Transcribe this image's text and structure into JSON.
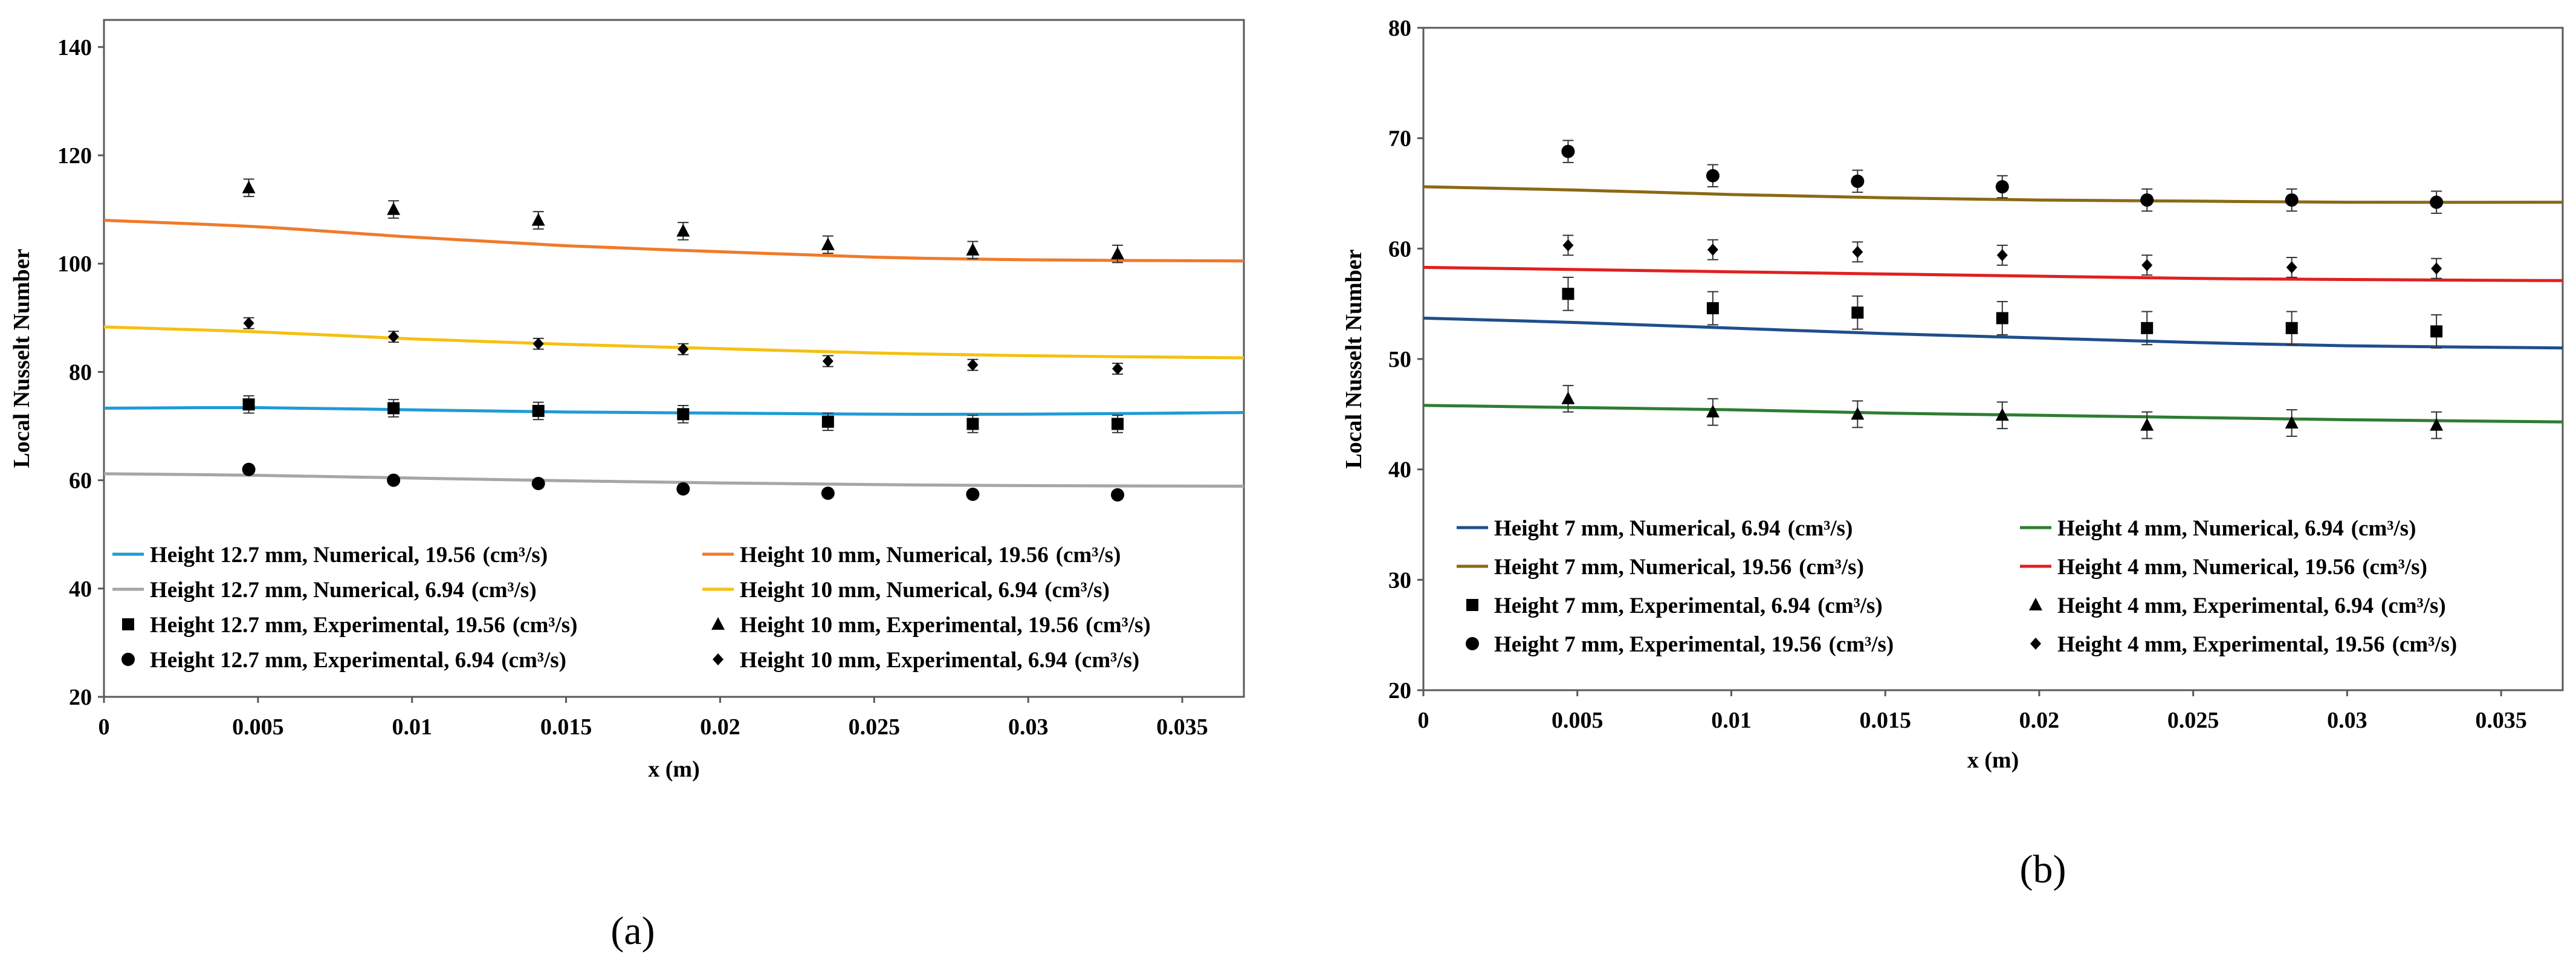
{
  "colors": {
    "blue": "#1f9bd6",
    "orange": "#f07a2a",
    "gray": "#a6a6a6",
    "yellow": "#f5c010",
    "navy": "#1f4e8c",
    "brown": "#8b6914",
    "red": "#e02020",
    "green": "#2e7d32",
    "marker": "#000000"
  },
  "chart_data": [
    {
      "type": "line",
      "panel_label": "(a)",
      "title": "",
      "xlabel": "x (m)",
      "ylabel": "Local Nusselt Number",
      "xlim": [
        0,
        0.037
      ],
      "ylim": [
        20,
        145
      ],
      "xticks": [
        0,
        0.005,
        0.01,
        0.015,
        0.02,
        0.025,
        0.03,
        0.035
      ],
      "xtick_labels": [
        "0",
        "0.005",
        "0.01",
        "0.015",
        "0.02",
        "0.025",
        "0.03",
        "0.035"
      ],
      "yticks": [
        20,
        40,
        60,
        80,
        100,
        120,
        140
      ],
      "ytick_labels": [
        "20",
        "40",
        "60",
        "80",
        "100",
        "120",
        "140"
      ],
      "legend_position": "bottom",
      "series": [
        {
          "name": "Height 12.7 mm, Numerical, 19.56",
          "unit": "(cm³/s)",
          "kind": "line",
          "color": "blue",
          "x": [
            0,
            0.005,
            0.01,
            0.015,
            0.02,
            0.025,
            0.03,
            0.037
          ],
          "y": [
            73.3,
            73.4,
            73.0,
            72.6,
            72.4,
            72.2,
            72.2,
            72.5
          ]
        },
        {
          "name": "Height 10 mm, Numerical, 19.56",
          "unit": "(cm³/s)",
          "kind": "line",
          "color": "orange",
          "x": [
            0,
            0.005,
            0.01,
            0.015,
            0.02,
            0.025,
            0.03,
            0.037
          ],
          "y": [
            108.0,
            106.8,
            104.9,
            103.3,
            102.2,
            101.2,
            100.7,
            100.5
          ]
        },
        {
          "name": "Height 12.7 mm, Numerical, 6.94",
          "unit": "(cm³/s)",
          "kind": "line",
          "color": "gray",
          "x": [
            0,
            0.005,
            0.01,
            0.015,
            0.02,
            0.025,
            0.03,
            0.037
          ],
          "y": [
            61.2,
            60.9,
            60.4,
            59.9,
            59.5,
            59.2,
            59.0,
            58.9
          ]
        },
        {
          "name": "Height 10 mm, Numerical, 6.94",
          "unit": "(cm³/s)",
          "kind": "line",
          "color": "yellow",
          "x": [
            0,
            0.005,
            0.01,
            0.015,
            0.02,
            0.025,
            0.03,
            0.037
          ],
          "y": [
            88.3,
            87.4,
            86.1,
            85.1,
            84.3,
            83.5,
            83.0,
            82.6
          ]
        },
        {
          "name": "Height 12.7 mm, Experimental, 19.56",
          "unit": "(cm³/s)",
          "kind": "marker",
          "marker": "square",
          "x": [
            0.0047,
            0.0094,
            0.0141,
            0.0188,
            0.0235,
            0.0282,
            0.0329
          ],
          "y": [
            74.0,
            73.3,
            72.8,
            72.2,
            70.8,
            70.4,
            70.4
          ],
          "err": 1.6
        },
        {
          "name": "Height 10 mm, Experimental, 19.56",
          "unit": "(cm³/s)",
          "kind": "marker",
          "marker": "triangle",
          "x": [
            0.0047,
            0.0094,
            0.0141,
            0.0188,
            0.0235,
            0.0282,
            0.0329
          ],
          "y": [
            114.0,
            110.0,
            108.0,
            106.0,
            103.5,
            102.5,
            101.8
          ],
          "err": 1.6
        },
        {
          "name": "Height 12.7 mm, Experimental, 6.94",
          "unit": "(cm³/s)",
          "kind": "marker",
          "marker": "circle",
          "x": [
            0.0047,
            0.0094,
            0.0141,
            0.0188,
            0.0235,
            0.0282,
            0.0329
          ],
          "y": [
            62.0,
            60.0,
            59.4,
            58.4,
            57.6,
            57.4,
            57.3
          ],
          "err": 0.6
        },
        {
          "name": "Height 10 mm, Experimental, 6.94",
          "unit": "(cm³/s)",
          "kind": "marker",
          "marker": "diamond",
          "x": [
            0.0047,
            0.0094,
            0.0141,
            0.0188,
            0.0235,
            0.0282,
            0.0329
          ],
          "y": [
            89.0,
            86.5,
            85.2,
            84.2,
            82.0,
            81.3,
            80.6
          ],
          "err": 1.0
        }
      ]
    },
    {
      "type": "line",
      "panel_label": "(b)",
      "title": "",
      "xlabel": "x (m)",
      "ylabel": "Local Nusselt Number",
      "xlim": [
        0,
        0.037
      ],
      "ylim": [
        20,
        80
      ],
      "xticks": [
        0,
        0.005,
        0.01,
        0.015,
        0.02,
        0.025,
        0.03,
        0.035
      ],
      "xtick_labels": [
        "0",
        "0.005",
        "0.01",
        "0.015",
        "0.02",
        "0.025",
        "0.03",
        "0.035"
      ],
      "yticks": [
        20,
        30,
        40,
        50,
        60,
        70,
        80
      ],
      "ytick_labels": [
        "20",
        "30",
        "40",
        "50",
        "60",
        "70",
        "80"
      ],
      "legend_position": "bottom",
      "series": [
        {
          "name": "Height 7 mm, Numerical, 6.94",
          "unit": "(cm³/s)",
          "kind": "line",
          "color": "navy",
          "x": [
            0,
            0.005,
            0.01,
            0.015,
            0.02,
            0.025,
            0.03,
            0.037
          ],
          "y": [
            53.7,
            53.3,
            52.8,
            52.3,
            51.9,
            51.5,
            51.2,
            51.0
          ]
        },
        {
          "name": "Height 4 mm, Numerical, 6.94",
          "unit": "(cm³/s)",
          "kind": "line",
          "color": "green",
          "x": [
            0,
            0.005,
            0.01,
            0.015,
            0.02,
            0.025,
            0.03,
            0.037
          ],
          "y": [
            45.8,
            45.6,
            45.4,
            45.1,
            44.9,
            44.7,
            44.5,
            44.3
          ]
        },
        {
          "name": "Height 7 mm, Numerical, 19.56",
          "unit": "(cm³/s)",
          "kind": "line",
          "color": "brown",
          "x": [
            0,
            0.005,
            0.01,
            0.015,
            0.02,
            0.025,
            0.03,
            0.037
          ],
          "y": [
            65.6,
            65.3,
            64.9,
            64.6,
            64.4,
            64.3,
            64.2,
            64.2
          ]
        },
        {
          "name": "Height 4 mm, Numerical, 19.56",
          "unit": "(cm³/s)",
          "kind": "line",
          "color": "red",
          "x": [
            0,
            0.005,
            0.01,
            0.015,
            0.02,
            0.025,
            0.03,
            0.037
          ],
          "y": [
            58.3,
            58.1,
            57.9,
            57.7,
            57.5,
            57.3,
            57.2,
            57.1
          ]
        },
        {
          "name": "Height 7 mm, Experimental, 6.94",
          "unit": "(cm³/s)",
          "kind": "marker",
          "marker": "square",
          "x": [
            0.0047,
            0.0094,
            0.0141,
            0.0188,
            0.0235,
            0.0282,
            0.0329
          ],
          "y": [
            55.9,
            54.6,
            54.2,
            53.7,
            52.8,
            52.8,
            52.5
          ],
          "err": 1.5
        },
        {
          "name": "Height 4 mm, Experimental, 6.94",
          "unit": "(cm³/s)",
          "kind": "marker",
          "marker": "triangle",
          "x": [
            0.0047,
            0.0094,
            0.0141,
            0.0188,
            0.0235,
            0.0282,
            0.0329
          ],
          "y": [
            46.4,
            45.2,
            45.0,
            44.9,
            44.0,
            44.2,
            44.0
          ],
          "err": 1.2
        },
        {
          "name": "Height 7 mm, Experimental, 19.56",
          "unit": "(cm³/s)",
          "kind": "marker",
          "marker": "circle",
          "x": [
            0.0047,
            0.0094,
            0.0141,
            0.0188,
            0.0235,
            0.0282,
            0.0329
          ],
          "y": [
            68.8,
            66.6,
            66.1,
            65.6,
            64.4,
            64.4,
            64.2
          ],
          "err": 1.0
        },
        {
          "name": "Height 4 mm, Experimental, 19.56",
          "unit": "(cm³/s)",
          "kind": "marker",
          "marker": "diamond",
          "x": [
            0.0047,
            0.0094,
            0.0141,
            0.0188,
            0.0235,
            0.0282,
            0.0329
          ],
          "y": [
            60.3,
            59.9,
            59.7,
            59.4,
            58.5,
            58.3,
            58.2
          ],
          "err": 0.9
        }
      ]
    }
  ]
}
